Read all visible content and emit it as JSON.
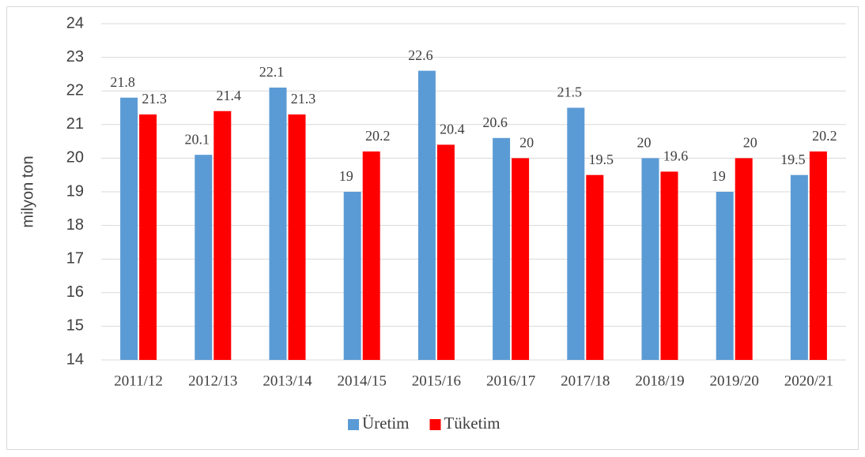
{
  "chart_data": {
    "type": "bar",
    "y_label": "milyon ton",
    "categories": [
      "2011/12",
      "2012/13",
      "2013/14",
      "2014/15",
      "2015/16",
      "2016/17",
      "2017/18",
      "2018/19",
      "2019/20",
      "2020/21"
    ],
    "series": [
      {
        "name": "Üretim",
        "color": "#5b9bd5",
        "values": [
          21.8,
          20.1,
          22.1,
          19,
          22.6,
          20.6,
          21.5,
          20,
          19,
          19.5
        ]
      },
      {
        "name": "Tüketim",
        "color": "#ff0000",
        "values": [
          21.3,
          21.4,
          21.3,
          20.2,
          20.4,
          20,
          19.5,
          19.6,
          20,
          20.2
        ]
      }
    ],
    "ylim": [
      14,
      24
    ],
    "yticks": [
      14,
      15,
      16,
      17,
      18,
      19,
      20,
      21,
      22,
      23,
      24
    ],
    "grid": true,
    "legend": "bottom"
  }
}
